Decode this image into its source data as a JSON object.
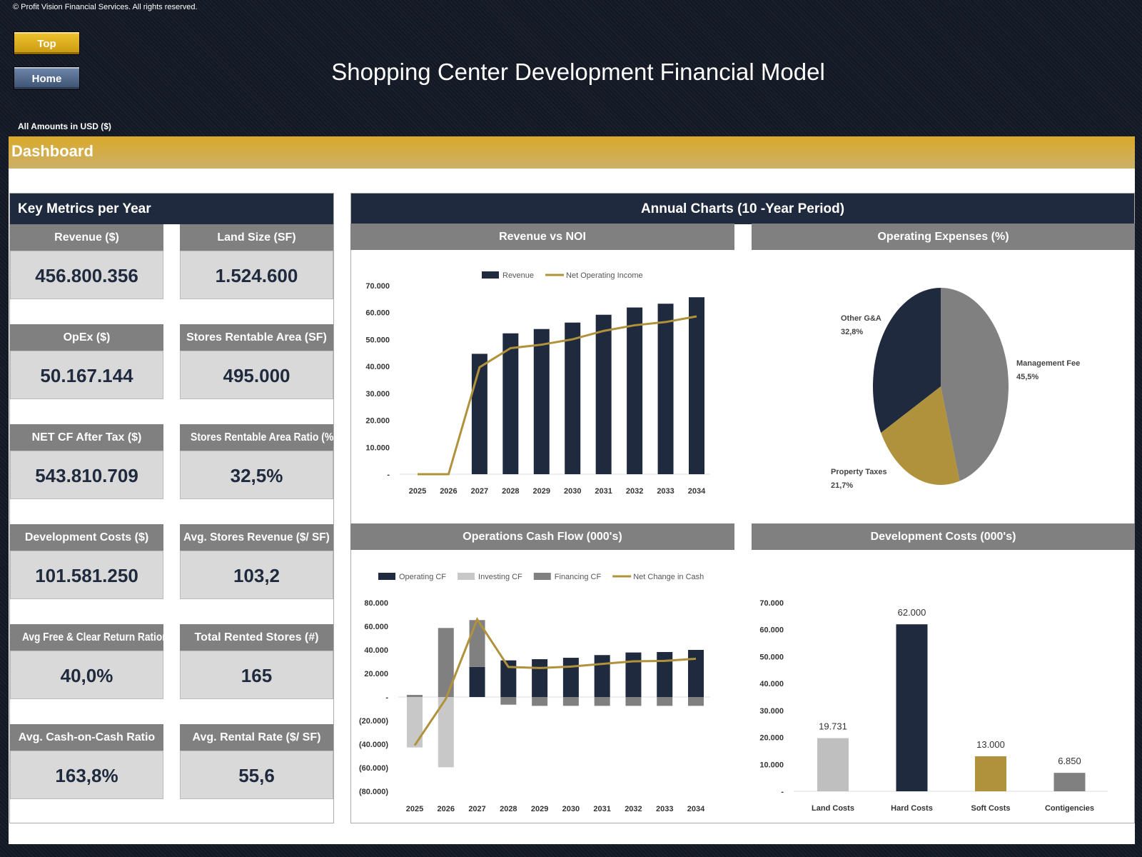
{
  "header": {
    "copyright": "© Profit Vision Financial Services. All rights reserved.",
    "top_button": "Top",
    "home_button": "Home",
    "title": "Shopping Center Development Financial Model",
    "amounts_note": "All Amounts in  USD ($)",
    "section": "Dashboard"
  },
  "metrics": {
    "title": "Key Metrics per Year",
    "cards": [
      {
        "label": "Revenue ($)",
        "value": "456.800.356"
      },
      {
        "label": "Land Size (SF)",
        "value": "1.524.600"
      },
      {
        "label": "OpEx ($)",
        "value": "50.167.144"
      },
      {
        "label": "Stores Rentable Area (SF)",
        "value": "495.000"
      },
      {
        "label": "NET CF After Tax ($)",
        "value": "543.810.709"
      },
      {
        "label": "Stores Rentable Area Ratio (%)",
        "value": "32,5%"
      },
      {
        "label": "Development Costs ($)",
        "value": "101.581.250"
      },
      {
        "label": "Avg. Stores Revenue ($/ SF)",
        "value": "103,2"
      },
      {
        "label": "Avg Free & Clear Return Ration",
        "value": "40,0%"
      },
      {
        "label": "Total Rented Stores (#)",
        "value": "165"
      },
      {
        "label": "Avg. Cash-on-Cash Ratio",
        "value": "163,8%"
      },
      {
        "label": "Avg. Rental Rate ($/ SF)",
        "value": "55,6"
      }
    ]
  },
  "charts": {
    "title": "Annual Charts (10 -Year Period)"
  },
  "colors": {
    "navy": "#1f2a3e",
    "gold": "#b0913c",
    "gray": "#808080",
    "light": "#bfbfbf"
  },
  "chart_data": [
    {
      "type": "bar",
      "title": "Revenue vs NOI",
      "categories": [
        "2025",
        "2026",
        "2027",
        "2028",
        "2029",
        "2030",
        "2031",
        "2032",
        "2033",
        "2034"
      ],
      "ylim": [
        0,
        70000
      ],
      "yticks": [
        "-",
        "10.000",
        "20.000",
        "30.000",
        "40.000",
        "50.000",
        "60.000",
        "70.000"
      ],
      "legend": "top",
      "series": [
        {
          "name": "Revenue",
          "kind": "bar",
          "color": "#1f2a3e",
          "values": [
            0,
            0,
            44700,
            52300,
            53900,
            56300,
            59200,
            61900,
            63300,
            65700
          ]
        },
        {
          "name": "Net Operating Income",
          "kind": "line",
          "color": "#b0913c",
          "values": [
            0,
            0,
            39700,
            46800,
            48100,
            50100,
            53200,
            55300,
            56500,
            58600
          ]
        }
      ]
    },
    {
      "type": "pie",
      "title": "Operating Expenses (%)",
      "slices": [
        {
          "label": "Management Fee",
          "value": 45.5,
          "text": "45,5%",
          "color": "#808080"
        },
        {
          "label": "Property Taxes",
          "value": 21.7,
          "text": "21,7%",
          "color": "#b0913c"
        },
        {
          "label": "Other G&A",
          "value": 32.8,
          "text": "32,8%",
          "color": "#1f2a3e"
        }
      ]
    },
    {
      "type": "bar",
      "title": "Operations Cash Flow (000's)",
      "categories": [
        "2025",
        "2026",
        "2027",
        "2028",
        "2029",
        "2030",
        "2031",
        "2032",
        "2033",
        "2034"
      ],
      "ylim": [
        -80000,
        80000
      ],
      "yticks": [
        "(80.000)",
        "(60.000)",
        "(40.000)",
        "(20.000)",
        "-",
        "20.000",
        "40.000",
        "60.000",
        "80.000"
      ],
      "legend": "top",
      "stacked": true,
      "series": [
        {
          "name": "Operating CF",
          "kind": "bar",
          "color": "#1f2a3e",
          "values": [
            0,
            0,
            25500,
            31100,
            32100,
            33300,
            35600,
            37800,
            38200,
            40000
          ]
        },
        {
          "name": "Investing CF",
          "kind": "bar",
          "color": "#c8c8c8",
          "values": [
            -42800,
            -59600,
            0,
            0,
            0,
            0,
            0,
            0,
            0,
            0
          ]
        },
        {
          "name": "Financing CF",
          "kind": "bar",
          "color": "#808080",
          "values": [
            1800,
            58600,
            39800,
            -6500,
            -7500,
            -7500,
            -7500,
            -7500,
            -7500,
            -7500
          ]
        },
        {
          "name": "Net Change in Cash",
          "kind": "line",
          "color": "#b0913c",
          "values": [
            -41000,
            -1400,
            65900,
            25500,
            24600,
            25800,
            28100,
            30300,
            30700,
            32500
          ]
        }
      ]
    },
    {
      "type": "bar",
      "title": "Development Costs (000's)",
      "categories": [
        "Land Costs",
        "Hard Costs",
        "Soft Costs",
        "Contigencies"
      ],
      "values": [
        19731,
        62000,
        13000,
        6850
      ],
      "labels": [
        "19.731",
        "62.000",
        "13.000",
        "6.850"
      ],
      "colors": [
        "#bfbfbf",
        "#1f2a3e",
        "#b0913c",
        "#808080"
      ],
      "ylim": [
        0,
        70000
      ],
      "yticks": [
        "-",
        "10.000",
        "20.000",
        "30.000",
        "40.000",
        "50.000",
        "60.000",
        "70.000"
      ]
    }
  ]
}
